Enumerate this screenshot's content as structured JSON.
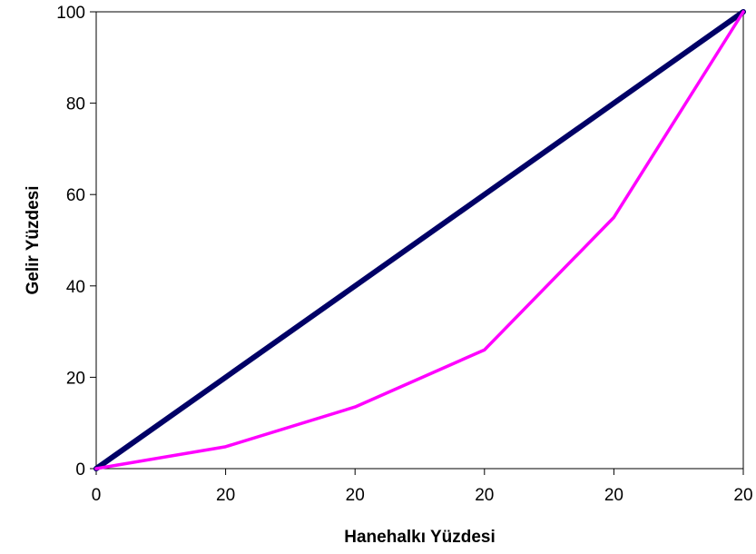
{
  "chart_data": {
    "type": "line",
    "title": "",
    "xlabel": "Hanehalkı Yüzdesi",
    "ylabel": "Gelir Yüzdesi",
    "x_tick_labels": [
      "0",
      "20",
      "20",
      "20",
      "20",
      "20"
    ],
    "y_ticks": [
      0,
      20,
      40,
      60,
      80,
      100
    ],
    "ylim": [
      0,
      100
    ],
    "grid": false,
    "legend": "none",
    "series": [
      {
        "color": "#000066",
        "values": [
          0,
          20,
          40,
          60,
          80,
          100
        ]
      },
      {
        "color": "#ff00ff",
        "values": [
          0,
          4.8,
          13.5,
          26,
          55,
          100
        ]
      }
    ]
  }
}
